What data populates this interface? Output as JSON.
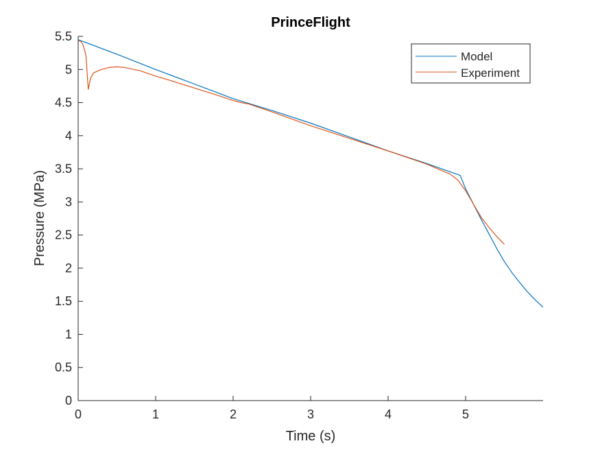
{
  "chart_data": {
    "type": "line",
    "title": "PrinceFlight",
    "xlabel": "Time (s)",
    "ylabel": "Pressure (MPa)",
    "xlim": [
      0,
      6
    ],
    "ylim": [
      0,
      5.5
    ],
    "x_ticks": [
      0,
      1,
      2,
      3,
      4,
      5
    ],
    "x_tick_labels": [
      "0",
      "1",
      "2",
      "3",
      "4",
      "5"
    ],
    "y_ticks": [
      0,
      0.5,
      1,
      1.5,
      2,
      2.5,
      3,
      3.5,
      4,
      4.5,
      5,
      5.5
    ],
    "y_tick_labels": [
      "0",
      "0.5",
      "1",
      "1.5",
      "2",
      "2.5",
      "3",
      "3.5",
      "4",
      "4.5",
      "5",
      "5.5"
    ],
    "grid": false,
    "legend_position": "top-right",
    "series": [
      {
        "name": "Model",
        "color": "#0072BD",
        "x": [
          0,
          0.5,
          1,
          1.5,
          2,
          2.5,
          3,
          3.5,
          4,
          4.5,
          4.93,
          5.0,
          5.1,
          5.2,
          5.3,
          5.4,
          5.5,
          5.6,
          5.7,
          5.8,
          5.9,
          6.0
        ],
        "y": [
          5.45,
          5.23,
          5.0,
          4.78,
          4.56,
          4.38,
          4.19,
          3.98,
          3.77,
          3.58,
          3.4,
          3.2,
          2.97,
          2.74,
          2.52,
          2.3,
          2.1,
          1.93,
          1.78,
          1.64,
          1.52,
          1.41
        ]
      },
      {
        "name": "Experiment",
        "color": "#D95319",
        "x": [
          0,
          0.03,
          0.06,
          0.1,
          0.13,
          0.16,
          0.2,
          0.3,
          0.4,
          0.5,
          0.6,
          0.8,
          1.0,
          1.2,
          1.5,
          1.8,
          2.0,
          2.1,
          2.2,
          2.5,
          3.0,
          3.5,
          4.0,
          4.5,
          4.8,
          4.9,
          5.0,
          5.1,
          5.2,
          5.3,
          5.4,
          5.5
        ],
        "y": [
          5.43,
          5.43,
          5.38,
          5.22,
          4.7,
          4.87,
          4.95,
          5.0,
          5.03,
          5.04,
          5.03,
          4.98,
          4.9,
          4.83,
          4.72,
          4.61,
          4.53,
          4.5,
          4.48,
          4.36,
          4.15,
          3.96,
          3.77,
          3.57,
          3.42,
          3.33,
          3.17,
          2.97,
          2.77,
          2.62,
          2.48,
          2.36
        ]
      }
    ]
  }
}
